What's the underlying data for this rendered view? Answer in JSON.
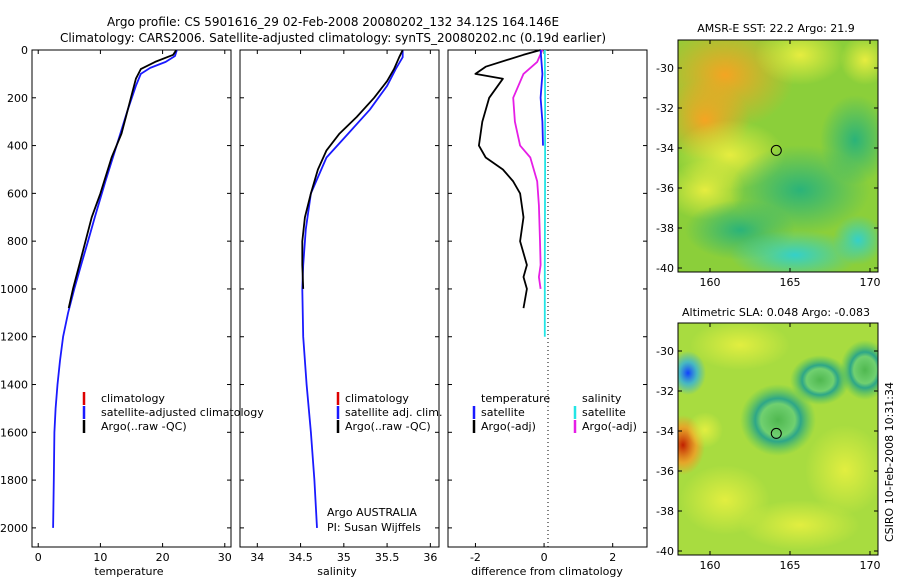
{
  "header": {
    "line1": "Argo profile: CS 5901616_29 02-Feb-2008 20080202_132 34.12S 164.146E",
    "line2": "Climatology: CARS2006. Satellite-adjusted climatology: synTS_20080202.nc (0.19d earlier)"
  },
  "credit": "CSIRO 10-Feb-2008 10:31:34",
  "attribution": {
    "line1": "Argo AUSTRALIA",
    "line2": "PI: Susan Wijffels"
  },
  "colors": {
    "climatology": "#dd0000",
    "satellite": "#1a1aff",
    "argo": "#000000",
    "sal_satellite": "#22e5e5",
    "sal_argo": "#e61ee6"
  },
  "chart_data": [
    {
      "type": "line",
      "xlabel": "temperature",
      "ylabel": "",
      "xlim": [
        -1,
        31
      ],
      "ylim": [
        2080,
        0
      ],
      "xticks": [
        0,
        10,
        20,
        30
      ],
      "yticks": [
        0,
        200,
        400,
        600,
        800,
        1000,
        1200,
        1400,
        1600,
        1800,
        2000
      ],
      "legend": [
        "climatology",
        "satellite-adjusted climatology",
        "Argo(..raw -QC)"
      ],
      "legend_placement": "lower-right",
      "series": [
        {
          "name": "satellite-adjusted climatology",
          "color_key": "satellite",
          "x": [
            22.3,
            22.0,
            20.5,
            18.0,
            16.5,
            15.7,
            14.4,
            12.6,
            10.8,
            9.1,
            8.0,
            6.9,
            5.8,
            4.8,
            4.0,
            3.5,
            3.1,
            2.8,
            2.6,
            2.5,
            2.4
          ],
          "y": [
            0,
            25,
            50,
            75,
            100,
            150,
            250,
            400,
            550,
            700,
            800,
            900,
            1000,
            1100,
            1200,
            1300,
            1400,
            1500,
            1600,
            1800,
            2000
          ]
        },
        {
          "name": "Argo(..raw -QC)",
          "color_key": "argo",
          "x": [
            22.2,
            21.7,
            18.8,
            16.5,
            15.7,
            14.9,
            14.4,
            13.4,
            11.8,
            10.0,
            8.6,
            7.6,
            6.6,
            5.6,
            4.9
          ],
          "y": [
            0,
            20,
            50,
            80,
            120,
            200,
            250,
            350,
            450,
            600,
            700,
            800,
            900,
            1000,
            1080
          ]
        }
      ]
    },
    {
      "type": "line",
      "xlabel": "salinity",
      "ylabel": "",
      "xlim": [
        33.8,
        36.1
      ],
      "ylim": [
        2080,
        0
      ],
      "xticks": [
        34,
        34.5,
        35,
        35.5,
        36
      ],
      "legend": [
        "climatology",
        "satellite adj. clim.",
        "Argo(..raw -QC)"
      ],
      "legend_placement": "lower-right",
      "series": [
        {
          "name": "satellite adj. clim.",
          "color_key": "satellite",
          "x": [
            35.68,
            35.68,
            35.6,
            35.5,
            35.3,
            35.05,
            34.8,
            34.62,
            34.56,
            34.53,
            34.52,
            34.53,
            34.57,
            34.62,
            34.66,
            34.69
          ],
          "y": [
            0,
            30,
            80,
            150,
            250,
            350,
            450,
            600,
            750,
            900,
            1000,
            1200,
            1400,
            1600,
            1800,
            2000
          ]
        },
        {
          "name": "Argo(..raw -QC)",
          "color_key": "argo",
          "x": [
            35.68,
            35.64,
            35.58,
            35.5,
            35.35,
            35.15,
            34.95,
            34.8,
            34.7,
            34.62,
            34.55,
            34.52,
            34.52,
            34.53
          ],
          "y": [
            0,
            30,
            80,
            130,
            200,
            280,
            350,
            420,
            500,
            600,
            700,
            800,
            900,
            1000
          ]
        }
      ]
    },
    {
      "type": "line",
      "xlabel": "difference from climatology",
      "ylabel": "",
      "xlim": [
        -2.8,
        3
      ],
      "ylim": [
        2080,
        0
      ],
      "xticks": [
        -2,
        0,
        2
      ],
      "legend": [
        "temperature",
        "satellite",
        "Argo(-adj)",
        "salinity",
        "satellite",
        "Argo(-adj)"
      ],
      "legend_placement": "lower",
      "series": [
        {
          "name": "temperature Argo(-adj)",
          "color_key": "argo",
          "x": [
            -0.1,
            -0.6,
            -1.7,
            -2.0,
            -1.2,
            -1.6,
            -1.8,
            -1.9,
            -1.7,
            -1.2,
            -0.9,
            -0.7,
            -0.6,
            -0.7,
            -0.5,
            -0.6,
            -0.5,
            -0.6
          ],
          "y": [
            0,
            20,
            70,
            100,
            120,
            200,
            300,
            400,
            450,
            500,
            550,
            600,
            700,
            800,
            900,
            950,
            1000,
            1080
          ]
        },
        {
          "name": "salinity Argo(-adj)",
          "color_key": "sal_argo",
          "x": [
            -0.05,
            -0.2,
            -0.6,
            -0.9,
            -0.85,
            -0.7,
            -0.4,
            -0.2,
            -0.15,
            -0.12,
            -0.1,
            -0.15,
            -0.1
          ],
          "y": [
            0,
            50,
            100,
            200,
            300,
            400,
            450,
            550,
            650,
            800,
            900,
            950,
            1000
          ]
        },
        {
          "name": "salinity satellite",
          "color_key": "sal_satellite",
          "x": [
            0.02,
            0.03,
            0.03,
            0.02,
            0.02
          ],
          "y": [
            0,
            200,
            500,
            900,
            1200
          ]
        },
        {
          "name": "temperature satellite",
          "color_key": "satellite",
          "x": [
            -0.1,
            -0.05,
            -0.1,
            -0.05,
            -0.03
          ],
          "y": [
            0,
            100,
            200,
            300,
            400
          ]
        }
      ]
    },
    {
      "type": "heatmap",
      "title": "AMSR-E SST: 22.2 Argo: 21.9",
      "xlim": [
        158,
        170.5
      ],
      "ylim": [
        -40.2,
        -28.6
      ],
      "xticks": [
        160,
        165,
        170
      ],
      "yticks": [
        -30,
        -32,
        -34,
        -36,
        -38,
        -40
      ],
      "marker": {
        "lon": 164.146,
        "lat": -34.12
      }
    },
    {
      "type": "heatmap",
      "title": "Altimetric SLA: 0.048 Argo: -0.083",
      "xlim": [
        158,
        170.5
      ],
      "ylim": [
        -40.2,
        -28.6
      ],
      "xticks": [
        160,
        165,
        170
      ],
      "yticks": [
        -30,
        -32,
        -34,
        -36,
        -38,
        -40
      ],
      "marker": {
        "lon": 164.146,
        "lat": -34.12
      }
    }
  ]
}
